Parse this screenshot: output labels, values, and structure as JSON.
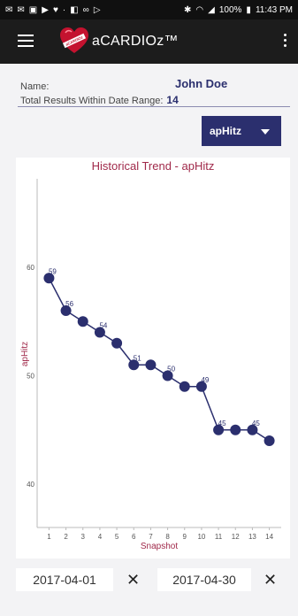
{
  "status_bar": {
    "battery": "100%",
    "time": "11:43 PM"
  },
  "app_bar": {
    "title": "aCARDIOz™",
    "logo_text": "aCARDIOz"
  },
  "info": {
    "name_label": "Name:",
    "name_value": "John Doe",
    "total_label": "Total Results Within Date Range:",
    "total_value": "14"
  },
  "metric_select": {
    "selected": "apHitz"
  },
  "chart_data": {
    "type": "line",
    "title": "Historical Trend - apHitz",
    "xlabel": "Snapshot",
    "ylabel": "apHitz",
    "x": [
      1,
      2,
      3,
      4,
      5,
      6,
      7,
      8,
      9,
      10,
      11,
      12,
      13,
      14
    ],
    "values": [
      59,
      56,
      55,
      54,
      53,
      51,
      51,
      50,
      49,
      49,
      45,
      45,
      45,
      44
    ],
    "data_labels": [
      "59",
      "56",
      "",
      "54",
      "",
      "51",
      "",
      "50",
      "",
      "49",
      "45",
      "",
      "45",
      ""
    ],
    "yticks": [
      40,
      50,
      60
    ],
    "ylim": [
      36,
      68
    ],
    "xlim": [
      0.3,
      14.7
    ],
    "grid": false,
    "colors": {
      "line": "#2b2f6e",
      "title": "#a0294a",
      "axis_label": "#a0294a"
    }
  },
  "date_range": {
    "start": "2017-04-01",
    "end": "2017-04-30",
    "clear_symbol": "✕"
  }
}
